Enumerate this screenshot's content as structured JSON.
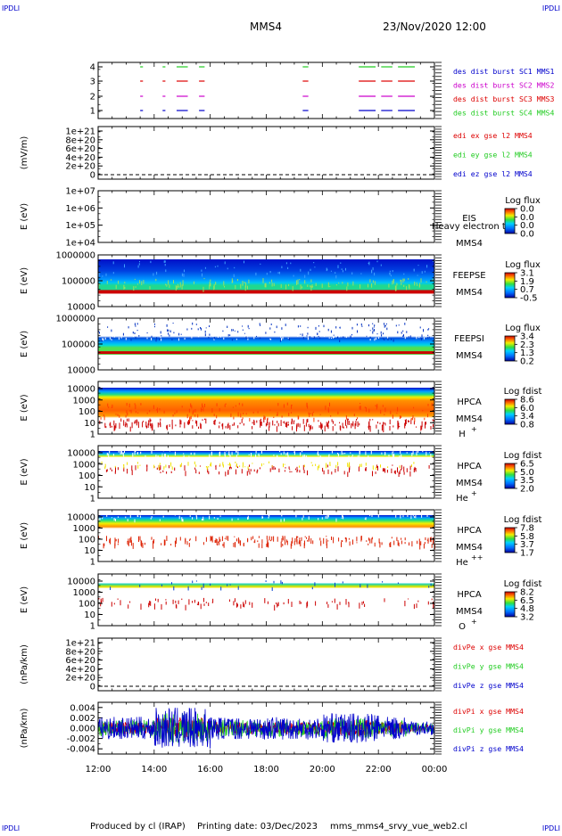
{
  "corner_labels": {
    "tl": "IPDLI",
    "tr": "IPDLI",
    "bl": "IPDLI",
    "br": "IPDLI"
  },
  "header": {
    "title": "MMS4",
    "datetime": "23/Nov/2020 12:00"
  },
  "footer": {
    "produced_by": "Produced by cl (IRAP)",
    "printing_date": "Printing date: 03/Dec/2023",
    "filename": "mms_mms4_srvy_vue_web2.cl"
  },
  "colors": {
    "red": "#dd0000",
    "green": "#22cc22",
    "blue": "#0000cc",
    "magenta": "#cc00cc",
    "darkred": "#cc2222"
  },
  "chart_data": {
    "type": "multi-panel",
    "x_axis": {
      "ticks": [
        "12:00",
        "14:00",
        "16:00",
        "18:00",
        "20:00",
        "22:00",
        "00:00"
      ]
    },
    "panels": [
      {
        "id": "burst",
        "type": "timeline",
        "yticks": [
          "4",
          "3",
          "2",
          "1"
        ],
        "legend": [
          {
            "text": "des dist burst SC1 MMS1",
            "color": "#0000cc"
          },
          {
            "text": "des dist burst SC2 MMS2",
            "color": "#cc00cc"
          },
          {
            "text": "des dist burst SC3 MMS3",
            "color": "#dd0000"
          },
          {
            "text": "des dist burst SC4 MMS4",
            "color": "#22cc22"
          }
        ],
        "segments_hours": [
          [
            13.5,
            13.6
          ],
          [
            14.3,
            14.4
          ],
          [
            14.8,
            15.2
          ],
          [
            15.6,
            15.8
          ],
          [
            19.3,
            19.5
          ],
          [
            21.3,
            21.9
          ],
          [
            22.1,
            22.5
          ],
          [
            22.7,
            23.3
          ]
        ]
      },
      {
        "id": "edi",
        "type": "line",
        "ylabel": "(mV/m)",
        "yticks": [
          "1e+21",
          "8e+20",
          "6e+20",
          "4e+20",
          "2e+20",
          "0"
        ],
        "legend": [
          {
            "text": "edi ex gse l2 MMS4",
            "color": "#dd0000"
          },
          {
            "text": "edi ey gse l2 MMS4",
            "color": "#22cc22"
          },
          {
            "text": "edi ez gse l2 MMS4",
            "color": "#0000cc"
          }
        ]
      },
      {
        "id": "eis",
        "type": "spectrogram",
        "ylabel": "E (eV)",
        "yticks": [
          "1e+07",
          "1e+06",
          "1e+05",
          "1e+04"
        ],
        "instrument": "EIS",
        "spacecraft": "MMS4",
        "overlay_text": "Heavy electron to",
        "cbar_title": "Log flux",
        "cbar_ticks": [
          "0.0",
          "0.0",
          "0.0",
          "0.0"
        ]
      },
      {
        "id": "feepse",
        "type": "spectrogram",
        "ylabel": "E (eV)",
        "yticks": [
          "1000000",
          "100000",
          "10000"
        ],
        "instrument": "FEEPSE",
        "spacecraft": "MMS4",
        "cbar_title": "Log flux",
        "cbar_ticks": [
          "3.1",
          "1.9",
          "0.7",
          "-0.5"
        ]
      },
      {
        "id": "feepsi",
        "type": "spectrogram",
        "ylabel": "E (eV)",
        "yticks": [
          "1000000",
          "100000",
          "10000"
        ],
        "instrument": "FEEPSI",
        "spacecraft": "MMS4",
        "cbar_title": "Log flux",
        "cbar_ticks": [
          "3.4",
          "2.3",
          "1.3",
          "0.2"
        ]
      },
      {
        "id": "hpca_h",
        "type": "spectrogram",
        "ylabel": "E (eV)",
        "yticks": [
          "10000",
          "1000",
          "100",
          "10",
          "1"
        ],
        "instrument": "HPCA",
        "spacecraft": "MMS4",
        "species": "H",
        "species_sup": "+",
        "cbar_title": "Log fdist",
        "cbar_ticks": [
          "8.6",
          "6.0",
          "3.4",
          "0.8"
        ]
      },
      {
        "id": "hpca_he1",
        "type": "spectrogram",
        "ylabel": "E (eV)",
        "yticks": [
          "10000",
          "1000",
          "100",
          "10",
          "1"
        ],
        "instrument": "HPCA",
        "spacecraft": "MMS4",
        "species": "He",
        "species_sup": "+",
        "cbar_title": "Log fdist",
        "cbar_ticks": [
          "6.5",
          "5.0",
          "3.5",
          "2.0"
        ]
      },
      {
        "id": "hpca_he2",
        "type": "spectrogram",
        "ylabel": "E (eV)",
        "yticks": [
          "10000",
          "1000",
          "100",
          "10",
          "1"
        ],
        "instrument": "HPCA",
        "spacecraft": "MMS4",
        "species": "He",
        "species_sup": "++",
        "cbar_title": "Log fdist",
        "cbar_ticks": [
          "7.8",
          "5.8",
          "3.7",
          "1.7"
        ]
      },
      {
        "id": "hpca_o",
        "type": "spectrogram",
        "ylabel": "E (eV)",
        "yticks": [
          "10000",
          "1000",
          "100",
          "10",
          "1"
        ],
        "instrument": "HPCA",
        "spacecraft": "MMS4",
        "species": "O",
        "species_sup": "+",
        "cbar_title": "Log fdist",
        "cbar_ticks": [
          "8.2",
          "6.5",
          "4.8",
          "3.2"
        ]
      },
      {
        "id": "divpe",
        "type": "line",
        "ylabel": "(nPa/km)",
        "yticks": [
          "1e+21",
          "8e+20",
          "6e+20",
          "4e+20",
          "2e+20",
          "0"
        ],
        "legend": [
          {
            "text": "divPe x gse MMS4",
            "color": "#dd0000"
          },
          {
            "text": "divPe y gse MMS4",
            "color": "#22cc22"
          },
          {
            "text": "divPe z gse MMS4",
            "color": "#0000cc"
          }
        ]
      },
      {
        "id": "divpi",
        "type": "line",
        "ylabel": "(nPa/km)",
        "yticks": [
          "0.004",
          "0.002",
          "0.000",
          "-0.002",
          "-0.004"
        ],
        "ylim": [
          -0.005,
          0.005
        ],
        "legend": [
          {
            "text": "divPi x gse MMS4",
            "color": "#dd0000"
          },
          {
            "text": "divPi y gse MMS4",
            "color": "#22cc22"
          },
          {
            "text": "divPi z gse MMS4",
            "color": "#0000cc"
          }
        ]
      }
    ]
  }
}
